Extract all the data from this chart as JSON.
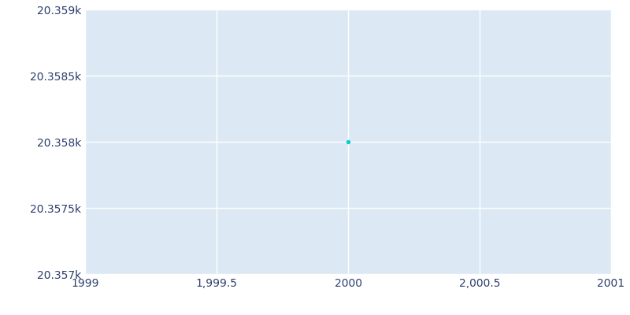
{
  "x_values": [
    2000
  ],
  "y_values": [
    20358
  ],
  "point_color": "#00CED1",
  "point_size": 8,
  "xlim": [
    1999,
    2001
  ],
  "ylim": [
    20357,
    20359
  ],
  "x_ticks": [
    1999,
    1999.5,
    2000,
    2000.5,
    2001
  ],
  "y_ticks": [
    20357,
    20357.5,
    20358,
    20358.5,
    20359
  ],
  "y_tick_labels": [
    "20.357k",
    "20.3575k",
    "20.358k",
    "20.3585k",
    "20.359k"
  ],
  "x_tick_labels": [
    "1999",
    "1,999.5",
    "2000",
    "2,000.5",
    "2001"
  ],
  "background_color": "#dce9f5",
  "figure_background": "#ffffff",
  "grid_color": "#ffffff",
  "tick_color": "#2b3d6b"
}
